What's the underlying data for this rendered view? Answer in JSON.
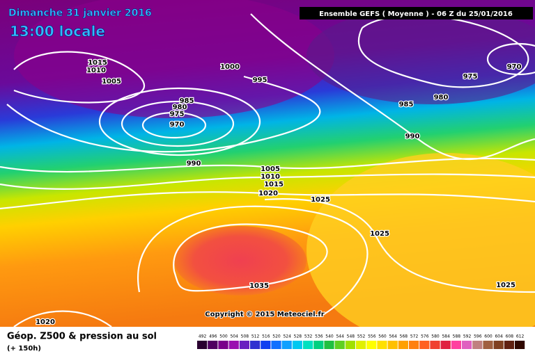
{
  "header": {
    "title": "Dimanche 31 janvier 2016",
    "subtitle": "13:00 locale",
    "model": "Ensemble GEFS  ( Moyenne )  -  06 Z du 25/01/2016"
  },
  "map": {
    "isobar_labels": [
      1015,
      1010,
      1005,
      1000,
      995,
      985,
      980,
      975,
      970,
      990,
      1005,
      1010,
      1015,
      1020,
      1025,
      1025,
      1035,
      1020,
      985,
      980,
      975,
      970,
      990,
      1025
    ],
    "copyright": "Copyright © 2015 Meteociel.fr"
  },
  "footer": {
    "title": "Géop. Z500 & pression au sol",
    "lead": "(+ 150h)"
  },
  "scale": {
    "ticks": [
      492,
      496,
      500,
      504,
      508,
      512,
      516,
      520,
      524,
      528,
      532,
      536,
      540,
      544,
      548,
      552,
      556,
      560,
      564,
      568,
      572,
      576,
      580,
      584,
      588,
      592,
      596,
      600,
      604,
      608,
      612
    ]
  }
}
